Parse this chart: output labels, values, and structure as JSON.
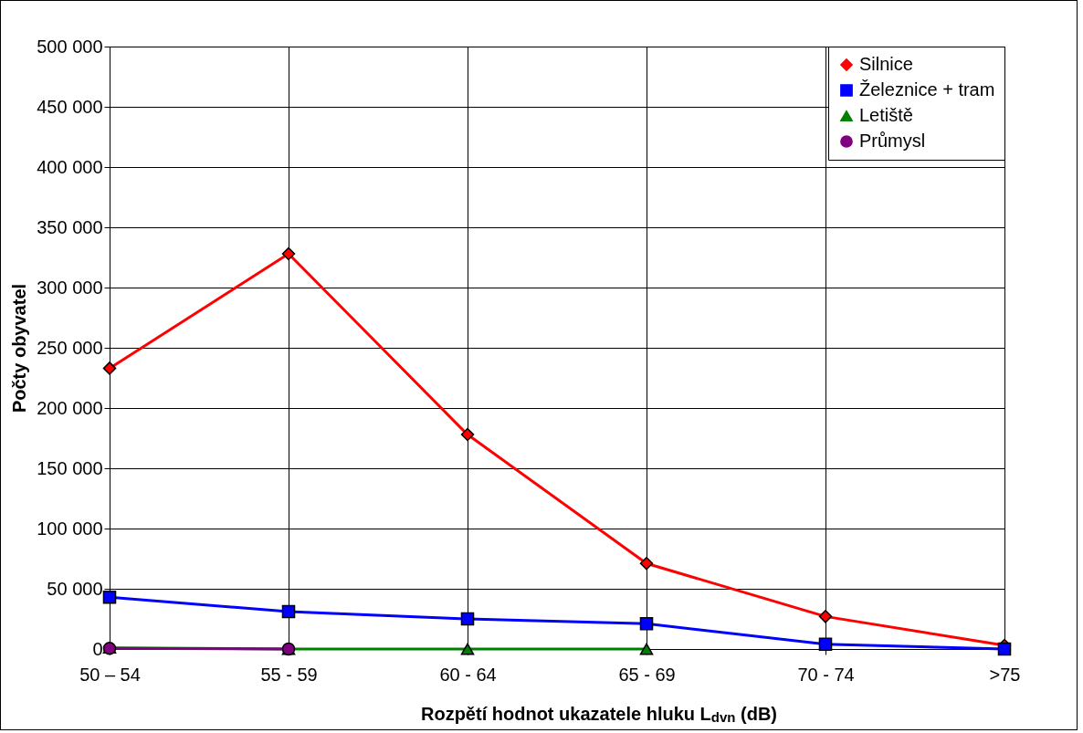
{
  "chart_data": {
    "type": "line",
    "xlabel": "Rozpětí hodnot ukazatele hluku L$_{dvn}$ (dB)",
    "ylabel": "Počty obyvatel",
    "categories": [
      "50 – 54",
      "55 - 59",
      "60 - 64",
      "65 - 69",
      "70 - 74",
      ">75"
    ],
    "series": [
      {
        "name": "Silnice",
        "color": "#ff0000",
        "marker": "diamond",
        "values": [
          233000,
          328000,
          178000,
          71000,
          27000,
          3000
        ]
      },
      {
        "name": "Železnice + tram",
        "color": "#0000ff",
        "marker": "square",
        "values": [
          43000,
          31000,
          25000,
          21000,
          4000,
          0
        ]
      },
      {
        "name": "Letiště",
        "color": "#008000",
        "marker": "triangle",
        "values": [
          1000,
          0,
          0,
          0,
          null,
          null
        ]
      },
      {
        "name": "Průmysl",
        "color": "#800080",
        "marker": "circle",
        "values": [
          500,
          0,
          null,
          null,
          null,
          null
        ]
      }
    ],
    "ylim": [
      0,
      500000
    ],
    "yticks": [
      {
        "value": 0,
        "label": "0"
      },
      {
        "value": 50000,
        "label": "50 000"
      },
      {
        "value": 100000,
        "label": "100 000"
      },
      {
        "value": 150000,
        "label": "150 000"
      },
      {
        "value": 200000,
        "label": "200 000"
      },
      {
        "value": 250000,
        "label": "250 000"
      },
      {
        "value": 300000,
        "label": "300 000"
      },
      {
        "value": 350000,
        "label": "350 000"
      },
      {
        "value": 400000,
        "label": "400 000"
      },
      {
        "value": 450000,
        "label": "450 000"
      },
      {
        "value": 500000,
        "label": "500 000"
      }
    ],
    "grid": true,
    "legend": "top right",
    "line_style": "solid"
  }
}
